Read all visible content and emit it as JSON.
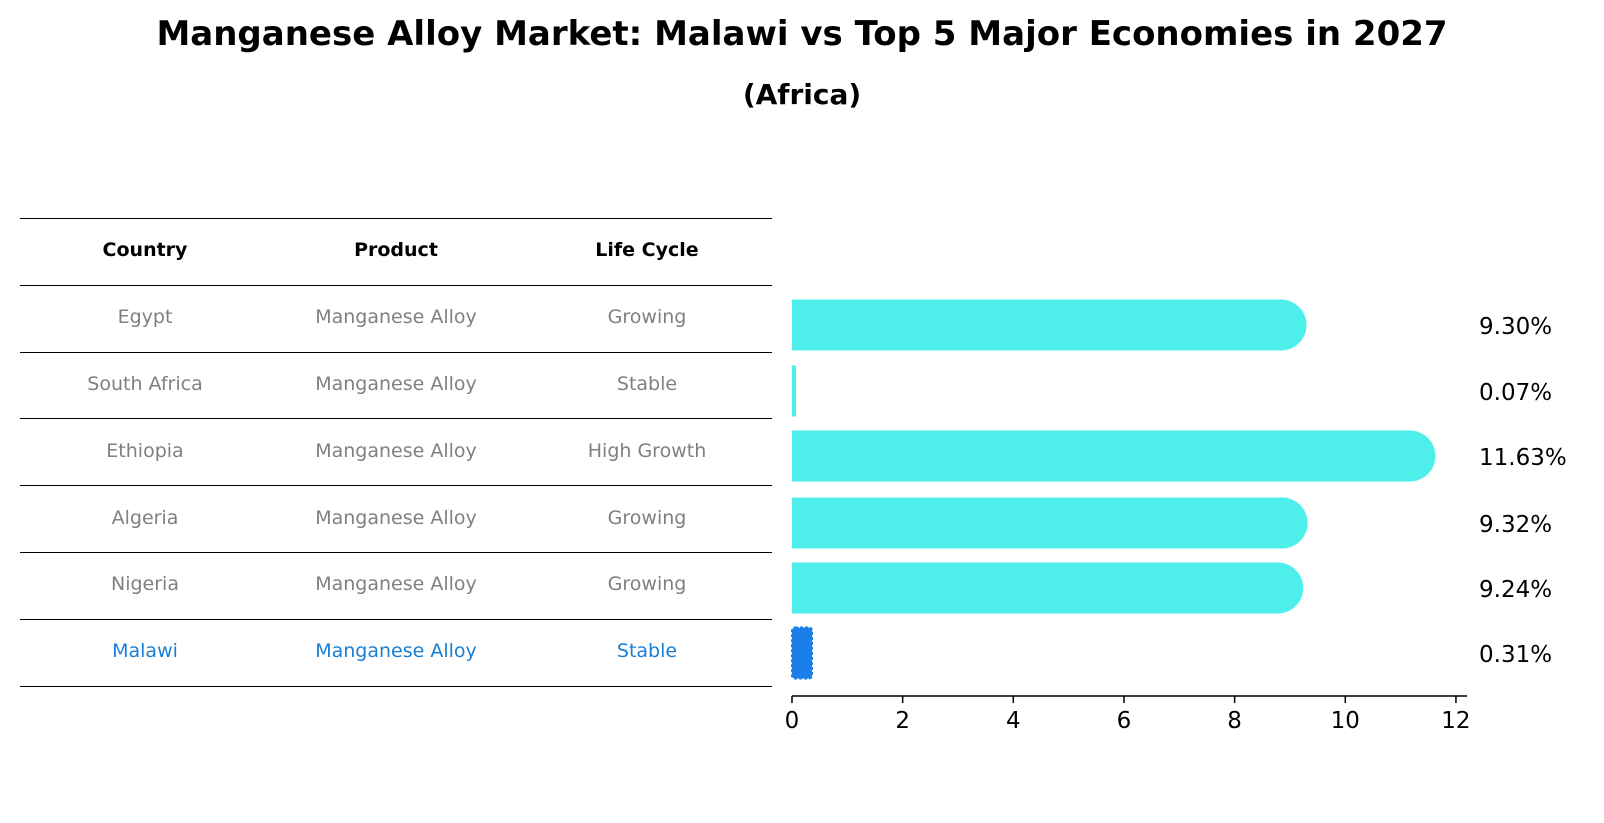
{
  "header": {
    "title": "Manganese Alloy Market: Malawi vs Top 5 Major Economies in 2027",
    "subtitle": "(Africa)"
  },
  "table": {
    "columns": [
      "Country",
      "Product",
      "Life Cycle"
    ],
    "rows": [
      {
        "country": "Egypt",
        "product": "Manganese Alloy",
        "life_cycle": "Growing",
        "highlight": false
      },
      {
        "country": "South Africa",
        "product": "Manganese Alloy",
        "life_cycle": "Stable",
        "highlight": false
      },
      {
        "country": "Ethiopia",
        "product": "Manganese Alloy",
        "life_cycle": "High Growth",
        "highlight": false
      },
      {
        "country": "Algeria",
        "product": "Manganese Alloy",
        "life_cycle": "Growing",
        "highlight": false
      },
      {
        "country": "Nigeria",
        "product": "Manganese Alloy",
        "life_cycle": "Growing",
        "highlight": false
      },
      {
        "country": "Malawi",
        "product": "Manganese Alloy",
        "life_cycle": "Stable",
        "highlight": true
      }
    ]
  },
  "colors": {
    "bar": "#4eeeeb",
    "highlight_bar": "#1a7fe8",
    "highlight_text": "#1a7fd4",
    "row_text": "#808080"
  },
  "chart_data": {
    "type": "bar",
    "orientation": "horizontal",
    "categories": [
      "Egypt",
      "South Africa",
      "Ethiopia",
      "Algeria",
      "Nigeria",
      "Malawi"
    ],
    "values": [
      9.3,
      0.07,
      11.63,
      9.32,
      9.24,
      0.31
    ],
    "value_labels": [
      "9.30%",
      "0.07%",
      "11.63%",
      "9.32%",
      "9.24%",
      "0.31%"
    ],
    "highlight_category": "Malawi",
    "xlim": [
      0,
      12.2
    ],
    "xticks": [
      0,
      2,
      4,
      6,
      8,
      10,
      12
    ],
    "xtick_labels": [
      "0",
      "2",
      "4",
      "6",
      "8",
      "10",
      "12"
    ],
    "xlabel": "",
    "ylabel": "",
    "grid": false
  }
}
